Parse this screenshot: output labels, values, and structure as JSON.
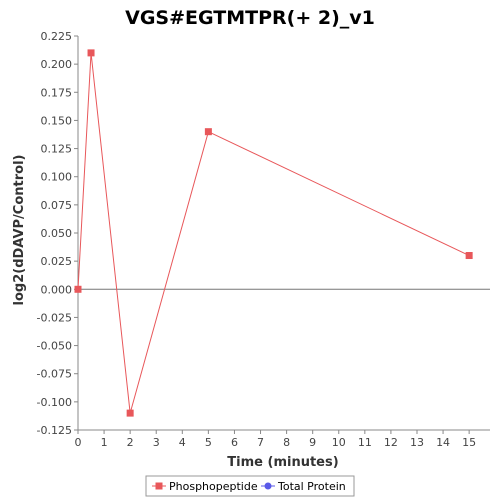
{
  "chart_data": {
    "type": "line",
    "title": "VGS#EGTMTPR(+ 2)_v1",
    "xlabel": "Time (minutes)",
    "ylabel": "log2(dDAVP/Control)",
    "xlim": [
      0,
      15.8
    ],
    "ylim": [
      -0.125,
      0.225
    ],
    "xticks": [
      0,
      1,
      2,
      3,
      4,
      5,
      6,
      7,
      8,
      9,
      10,
      11,
      12,
      13,
      14,
      15
    ],
    "yticks": [
      -0.125,
      -0.1,
      -0.075,
      -0.05,
      -0.025,
      0.0,
      0.025,
      0.05,
      0.075,
      0.1,
      0.125,
      0.15,
      0.175,
      0.2,
      0.225
    ],
    "ytick_labels": [
      "-0.125",
      "-0.100",
      "-0.075",
      "-0.050",
      "-0.025",
      "0.000",
      "0.025",
      "0.050",
      "0.075",
      "0.100",
      "0.125",
      "0.150",
      "0.175",
      "0.200",
      "0.225"
    ],
    "grid": false,
    "legend_position": "bottom",
    "series": [
      {
        "name": "Phosphopeptide",
        "color": "#e8575a",
        "marker": "square",
        "x": [
          0,
          0.5,
          2,
          5,
          15
        ],
        "y": [
          0.0,
          0.21,
          -0.11,
          0.14,
          0.03
        ]
      },
      {
        "name": "Total Protein",
        "color": "#5a5ae8",
        "marker": "circle",
        "x": [],
        "y": []
      }
    ]
  }
}
